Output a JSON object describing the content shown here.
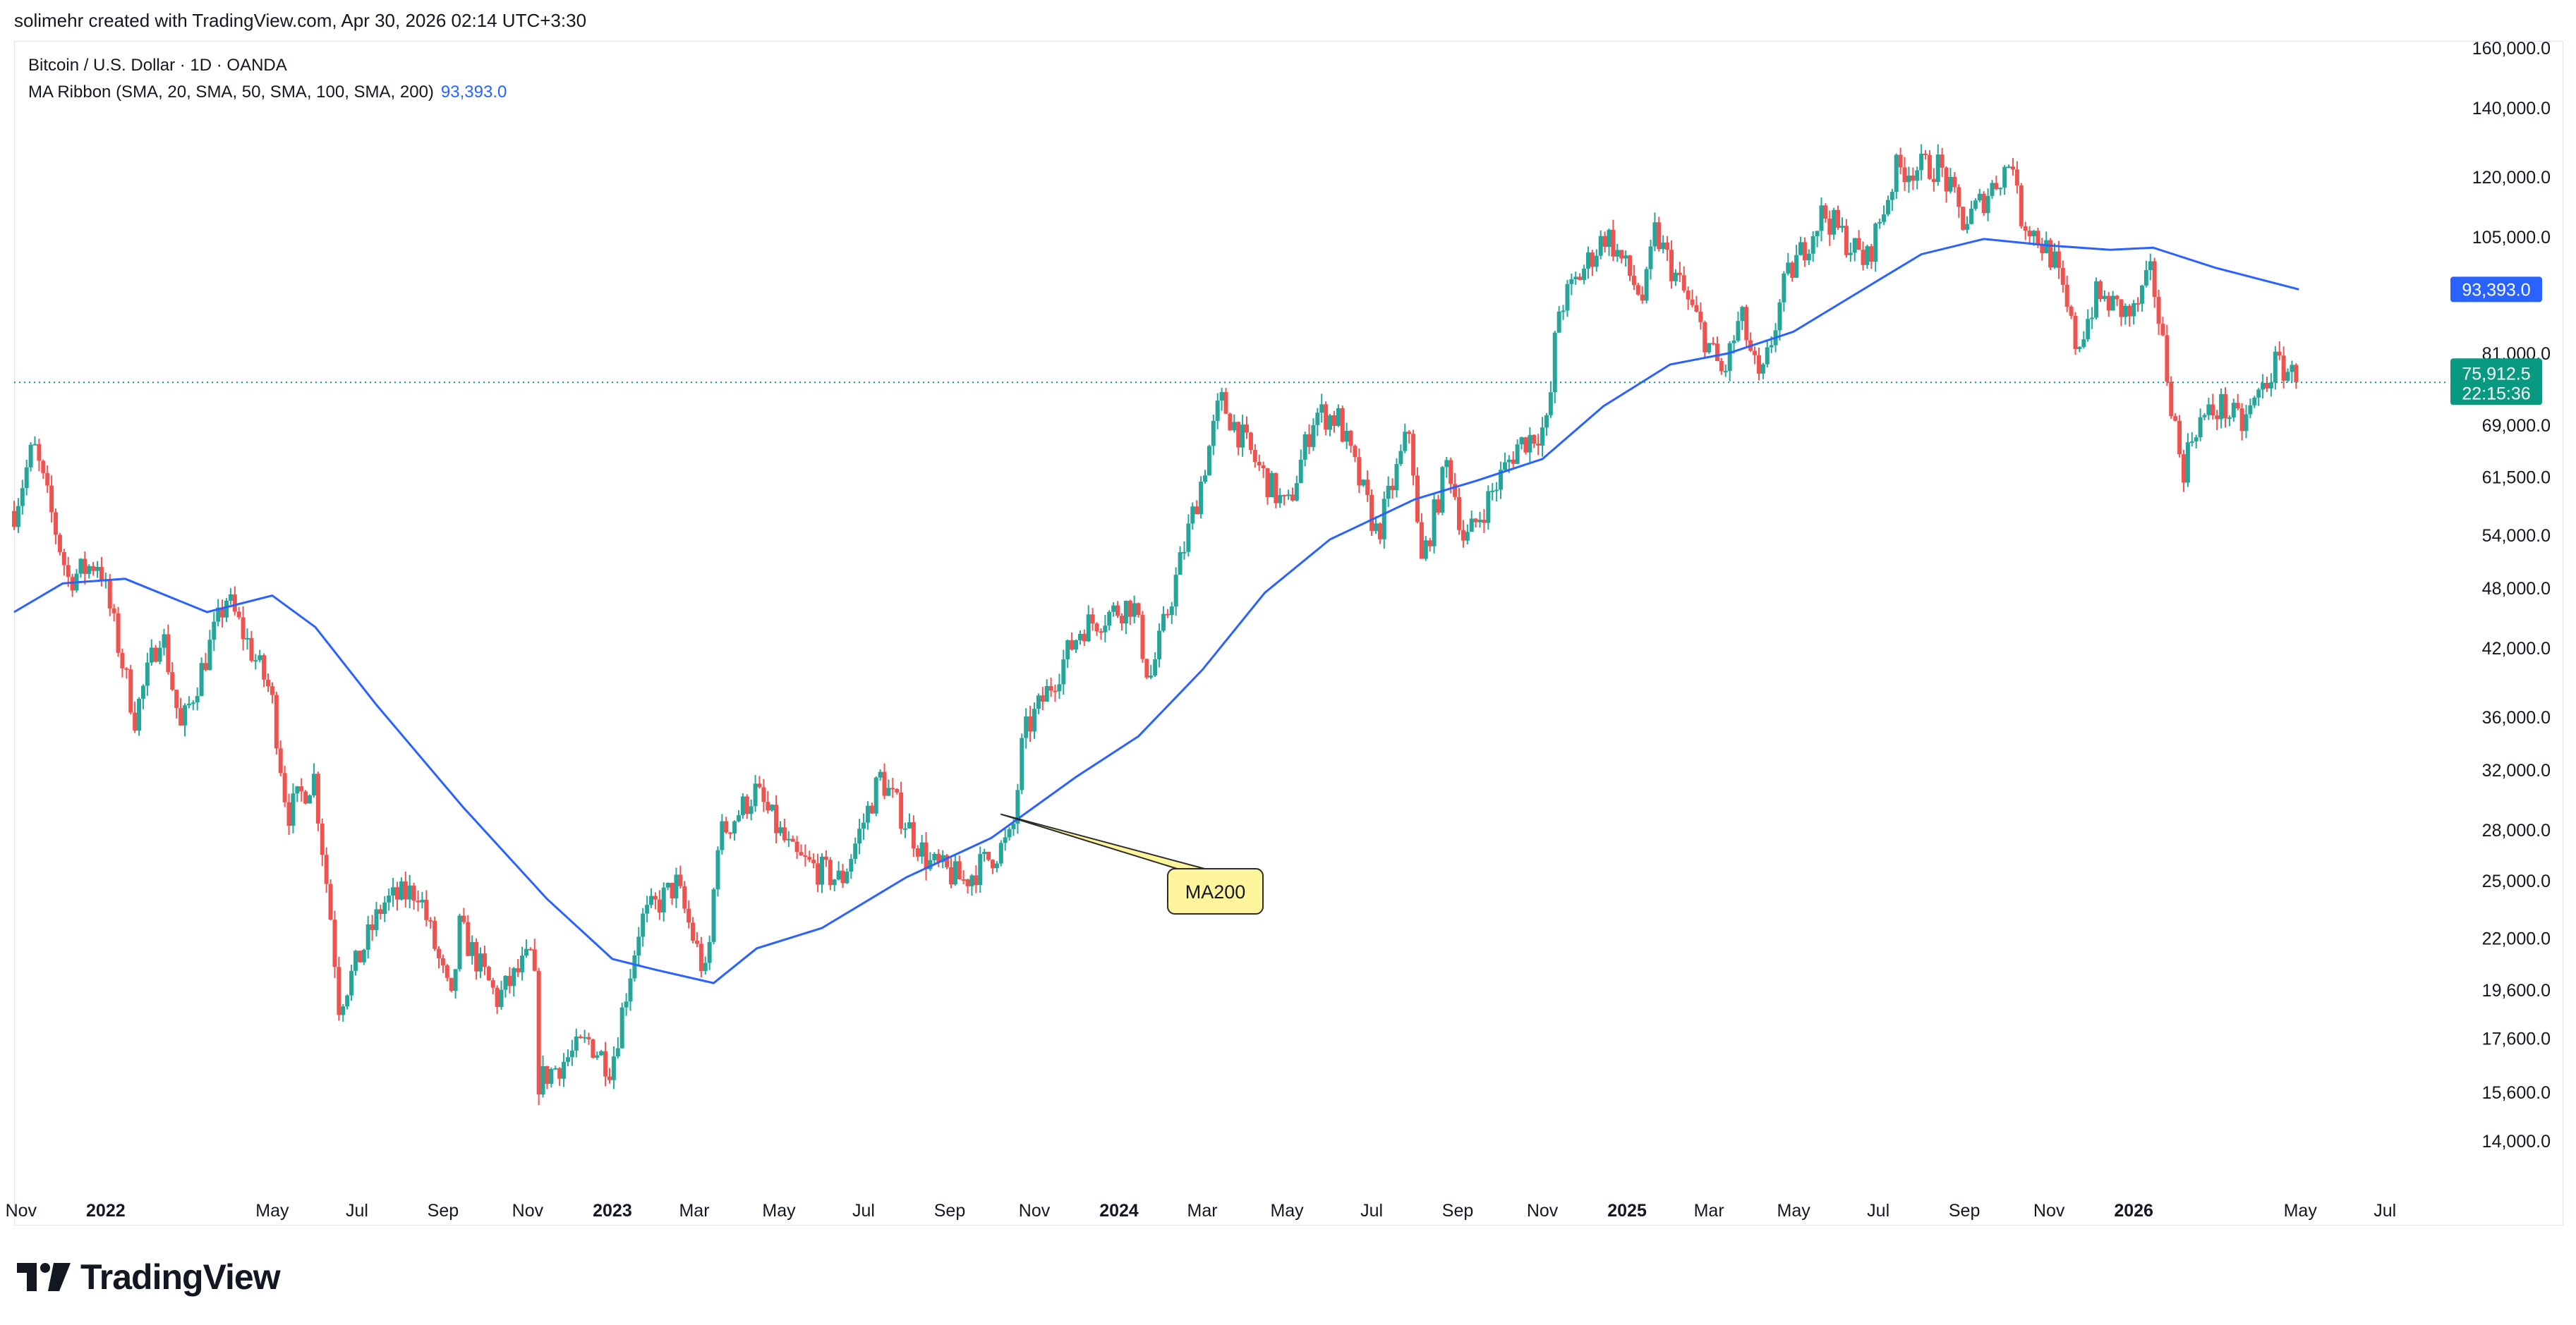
{
  "header": {
    "created_by": "solimehr created with TradingView.com, Apr 30, 2026 02:14 UTC+3:30"
  },
  "legend": {
    "symbol": "Bitcoin / U.S. Dollar · 1D · OANDA",
    "indicator": "MA Ribbon (SMA, 20, SMA, 50, SMA, 100, SMA, 200)",
    "indicator_value": "93,393.0"
  },
  "footer": {
    "brand": "TradingView"
  },
  "colors": {
    "up": "#26a69a",
    "down": "#ef5350",
    "ma200": "#2962ff",
    "callout_fill": "#fff59d",
    "callout_stroke": "#2b2b2b",
    "price_badge": "#089981"
  },
  "chart_data": {
    "type": "line",
    "title": "Bitcoin / U.S. Dollar · 1D · OANDA",
    "scale": "log",
    "ylim": [
      12500,
      162000
    ],
    "xlim": [
      "2021-10-27",
      "2026-08-08"
    ],
    "y_ticks": [
      "160,000.0",
      "140,000.0",
      "120,000.0",
      "105,000.0",
      "81,000.0",
      "69,000.0",
      "61,500.0",
      "54,000.0",
      "48,000.0",
      "42,000.0",
      "36,000.0",
      "32,000.0",
      "28,000.0",
      "25,000.0",
      "22,000.0",
      "19,600.0",
      "17,600.0",
      "15,600.0",
      "14,000.0"
    ],
    "y_tick_values": [
      160000,
      140000,
      120000,
      105000,
      81000,
      69000,
      61500,
      54000,
      48000,
      42000,
      36000,
      32000,
      28000,
      25000,
      22000,
      19600,
      17600,
      15600,
      14000
    ],
    "x_ticks": [
      {
        "label": "Nov",
        "date": "2021-11-01",
        "bold": false
      },
      {
        "label": "2022",
        "date": "2022-01-01",
        "bold": true
      },
      {
        "label": "May",
        "date": "2022-05-01",
        "bold": false
      },
      {
        "label": "Jul",
        "date": "2022-07-01",
        "bold": false
      },
      {
        "label": "Sep",
        "date": "2022-09-01",
        "bold": false
      },
      {
        "label": "Nov",
        "date": "2022-11-01",
        "bold": false
      },
      {
        "label": "2023",
        "date": "2023-01-01",
        "bold": true
      },
      {
        "label": "Mar",
        "date": "2023-03-01",
        "bold": false
      },
      {
        "label": "May",
        "date": "2023-05-01",
        "bold": false
      },
      {
        "label": "Jul",
        "date": "2023-07-01",
        "bold": false
      },
      {
        "label": "Sep",
        "date": "2023-09-01",
        "bold": false
      },
      {
        "label": "Nov",
        "date": "2023-11-01",
        "bold": false
      },
      {
        "label": "2024",
        "date": "2024-01-01",
        "bold": true
      },
      {
        "label": "Mar",
        "date": "2024-03-01",
        "bold": false
      },
      {
        "label": "May",
        "date": "2024-05-01",
        "bold": false
      },
      {
        "label": "Jul",
        "date": "2024-07-01",
        "bold": false
      },
      {
        "label": "Sep",
        "date": "2024-09-01",
        "bold": false
      },
      {
        "label": "Nov",
        "date": "2024-11-01",
        "bold": false
      },
      {
        "label": "2025",
        "date": "2025-01-01",
        "bold": true
      },
      {
        "label": "Mar",
        "date": "2025-03-01",
        "bold": false
      },
      {
        "label": "May",
        "date": "2025-05-01",
        "bold": false
      },
      {
        "label": "Jul",
        "date": "2025-07-01",
        "bold": false
      },
      {
        "label": "Sep",
        "date": "2025-09-01",
        "bold": false
      },
      {
        "label": "Nov",
        "date": "2025-11-01",
        "bold": false
      },
      {
        "label": "2026",
        "date": "2026-01-01",
        "bold": true
      },
      {
        "label": "May",
        "date": "2026-05-01",
        "bold": false
      },
      {
        "label": "Jul",
        "date": "2026-07-01",
        "bold": false
      }
    ],
    "price_path": [
      [
        "2021-10-27",
        57000
      ],
      [
        "2021-11-10",
        66000
      ],
      [
        "2021-12-05",
        49000
      ],
      [
        "2021-12-27",
        51000
      ],
      [
        "2022-01-22",
        36000
      ],
      [
        "2022-02-10",
        44000
      ],
      [
        "2022-02-24",
        35000
      ],
      [
        "2022-03-29",
        47000
      ],
      [
        "2022-04-30",
        38000
      ],
      [
        "2022-05-12",
        29000
      ],
      [
        "2022-05-31",
        31500
      ],
      [
        "2022-06-13",
        22500
      ],
      [
        "2022-06-18",
        19000
      ],
      [
        "2022-07-20",
        23800
      ],
      [
        "2022-08-14",
        24500
      ],
      [
        "2022-09-07",
        19000
      ],
      [
        "2022-09-13",
        22500
      ],
      [
        "2022-10-10",
        19200
      ],
      [
        "2022-11-05",
        21300
      ],
      [
        "2022-11-09",
        16000
      ],
      [
        "2022-12-15",
        17500
      ],
      [
        "2022-12-31",
        16500
      ],
      [
        "2023-01-21",
        22800
      ],
      [
        "2023-02-16",
        24800
      ],
      [
        "2023-03-10",
        20000
      ],
      [
        "2023-03-18",
        27500
      ],
      [
        "2023-04-14",
        30500
      ],
      [
        "2023-05-12",
        26300
      ],
      [
        "2023-06-15",
        25000
      ],
      [
        "2023-07-13",
        31500
      ],
      [
        "2023-08-17",
        26000
      ],
      [
        "2023-09-11",
        25000
      ],
      [
        "2023-10-16",
        27500
      ],
      [
        "2023-10-24",
        34500
      ],
      [
        "2023-12-05",
        44000
      ],
      [
        "2024-01-11",
        46500
      ],
      [
        "2024-01-23",
        39000
      ],
      [
        "2024-02-28",
        60000
      ],
      [
        "2024-03-14",
        73000
      ],
      [
        "2024-04-13",
        62000
      ],
      [
        "2024-05-01",
        57000
      ],
      [
        "2024-05-21",
        71000
      ],
      [
        "2024-06-07",
        70000
      ],
      [
        "2024-07-05",
        54000
      ],
      [
        "2024-07-29",
        69000
      ],
      [
        "2024-08-05",
        50000
      ],
      [
        "2024-08-25",
        64000
      ],
      [
        "2024-09-06",
        53000
      ],
      [
        "2024-10-14",
        66000
      ],
      [
        "2024-11-05",
        69000
      ],
      [
        "2024-11-12",
        89000
      ],
      [
        "2024-12-17",
        106000
      ],
      [
        "2025-01-13",
        91000
      ],
      [
        "2025-01-21",
        106000
      ],
      [
        "2025-02-26",
        84000
      ],
      [
        "2025-03-11",
        77000
      ],
      [
        "2025-03-24",
        88000
      ],
      [
        "2025-04-07",
        75000
      ],
      [
        "2025-04-25",
        95000
      ],
      [
        "2025-05-22",
        111000
      ],
      [
        "2025-06-22",
        99000
      ],
      [
        "2025-07-14",
        122000
      ],
      [
        "2025-08-14",
        123000
      ],
      [
        "2025-09-01",
        108000
      ],
      [
        "2025-10-06",
        125000
      ],
      [
        "2025-10-10",
        111000
      ],
      [
        "2025-11-04",
        100000
      ],
      [
        "2025-11-21",
        82000
      ],
      [
        "2025-12-05",
        92000
      ],
      [
        "2025-12-31",
        88000
      ],
      [
        "2026-01-14",
        97000
      ],
      [
        "2026-02-05",
        62000
      ],
      [
        "2026-02-14",
        69000
      ],
      [
        "2026-03-05",
        72000
      ],
      [
        "2026-03-20",
        69000
      ],
      [
        "2026-04-13",
        79000
      ],
      [
        "2026-04-22",
        78000
      ],
      [
        "2026-04-30",
        75912.5
      ]
    ],
    "series": [
      {
        "name": "MA200",
        "color": "#2962ff",
        "points": [
          [
            "2021-10-27",
            45500
          ],
          [
            "2021-12-01",
            48500
          ],
          [
            "2022-01-15",
            49000
          ],
          [
            "2022-03-15",
            45500
          ],
          [
            "2022-05-01",
            47200
          ],
          [
            "2022-06-01",
            44000
          ],
          [
            "2022-07-15",
            37000
          ],
          [
            "2022-09-15",
            29500
          ],
          [
            "2022-11-15",
            24000
          ],
          [
            "2023-01-01",
            21000
          ],
          [
            "2023-02-01",
            20500
          ],
          [
            "2023-03-15",
            19900
          ],
          [
            "2023-04-15",
            21500
          ],
          [
            "2023-06-01",
            22500
          ],
          [
            "2023-08-01",
            25200
          ],
          [
            "2023-10-01",
            27500
          ],
          [
            "2023-12-01",
            31500
          ],
          [
            "2024-01-15",
            34500
          ],
          [
            "2024-03-01",
            40000
          ],
          [
            "2024-04-15",
            47500
          ],
          [
            "2024-06-01",
            53500
          ],
          [
            "2024-08-01",
            58500
          ],
          [
            "2024-09-15",
            61000
          ],
          [
            "2024-11-01",
            64000
          ],
          [
            "2024-12-15",
            72000
          ],
          [
            "2025-02-01",
            79000
          ],
          [
            "2025-03-15",
            81000
          ],
          [
            "2025-05-01",
            85000
          ],
          [
            "2025-06-15",
            92500
          ],
          [
            "2025-08-01",
            101000
          ],
          [
            "2025-09-15",
            104500
          ],
          [
            "2025-11-01",
            103000
          ],
          [
            "2025-12-15",
            102000
          ],
          [
            "2026-01-15",
            102500
          ],
          [
            "2026-03-01",
            98000
          ],
          [
            "2026-04-30",
            93393
          ]
        ]
      }
    ],
    "last_price": "75,912.5",
    "countdown": "22:15:36",
    "ma_last_value": "93,393.0",
    "annotation": {
      "text": "MA200",
      "date": "2023-11-25",
      "value": 29000
    }
  }
}
